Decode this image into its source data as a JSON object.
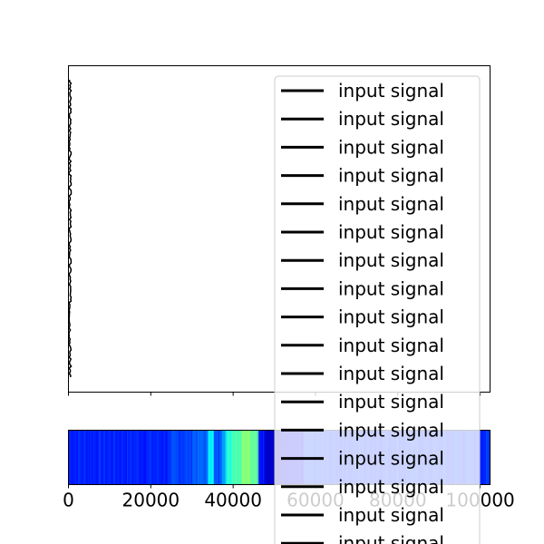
{
  "chart_data": [
    {
      "type": "line",
      "panel": "signal",
      "title": "",
      "xlabel": "",
      "ylabel": "",
      "grid": false,
      "x_tick_labels_visible": false,
      "y_ticks_visible": false,
      "signal_x_range": [
        0,
        500
      ],
      "legend": {
        "placement": "right",
        "entries": [
          "input signal",
          "input signal",
          "input signal",
          "input signal",
          "input signal",
          "input signal",
          "input signal",
          "input signal",
          "input signal",
          "input signal",
          "input signal",
          "input signal",
          "input signal",
          "input signal",
          "input signal",
          "input signal",
          "input signal"
        ]
      },
      "colors": {
        "line": "#000000"
      }
    },
    {
      "type": "heatmap",
      "panel": "colorband",
      "colormap": "jet",
      "xlim": [
        0,
        102400
      ],
      "x_ticks": [
        0,
        20000,
        40000,
        60000,
        80000,
        100000
      ],
      "x_tick_labels": [
        "0",
        "20000",
        "40000",
        "60000",
        "80000",
        "100000"
      ],
      "bands": [
        {
          "x0": 0,
          "x1": 25000,
          "level": 0.16
        },
        {
          "x0": 25000,
          "x1": 30000,
          "level": 0.19
        },
        {
          "x0": 30000,
          "x1": 33800,
          "level": 0.22
        },
        {
          "x0": 33800,
          "x1": 35200,
          "level": 0.38
        },
        {
          "x0": 35200,
          "x1": 37000,
          "level": 0.2
        },
        {
          "x0": 37000,
          "x1": 38000,
          "level": 0.3
        },
        {
          "x0": 38000,
          "x1": 39500,
          "level": 0.4
        },
        {
          "x0": 39500,
          "x1": 42000,
          "level": 0.46
        },
        {
          "x0": 42000,
          "x1": 44000,
          "level": 0.52
        },
        {
          "x0": 44000,
          "x1": 46000,
          "level": 0.48
        },
        {
          "x0": 46000,
          "x1": 47500,
          "level": 0.14
        },
        {
          "x0": 47500,
          "x1": 52000,
          "level": 0.08
        },
        {
          "x0": 52000,
          "x1": 57000,
          "level": 0.11
        },
        {
          "x0": 57000,
          "x1": 102400,
          "level": 0.17
        }
      ]
    }
  ]
}
